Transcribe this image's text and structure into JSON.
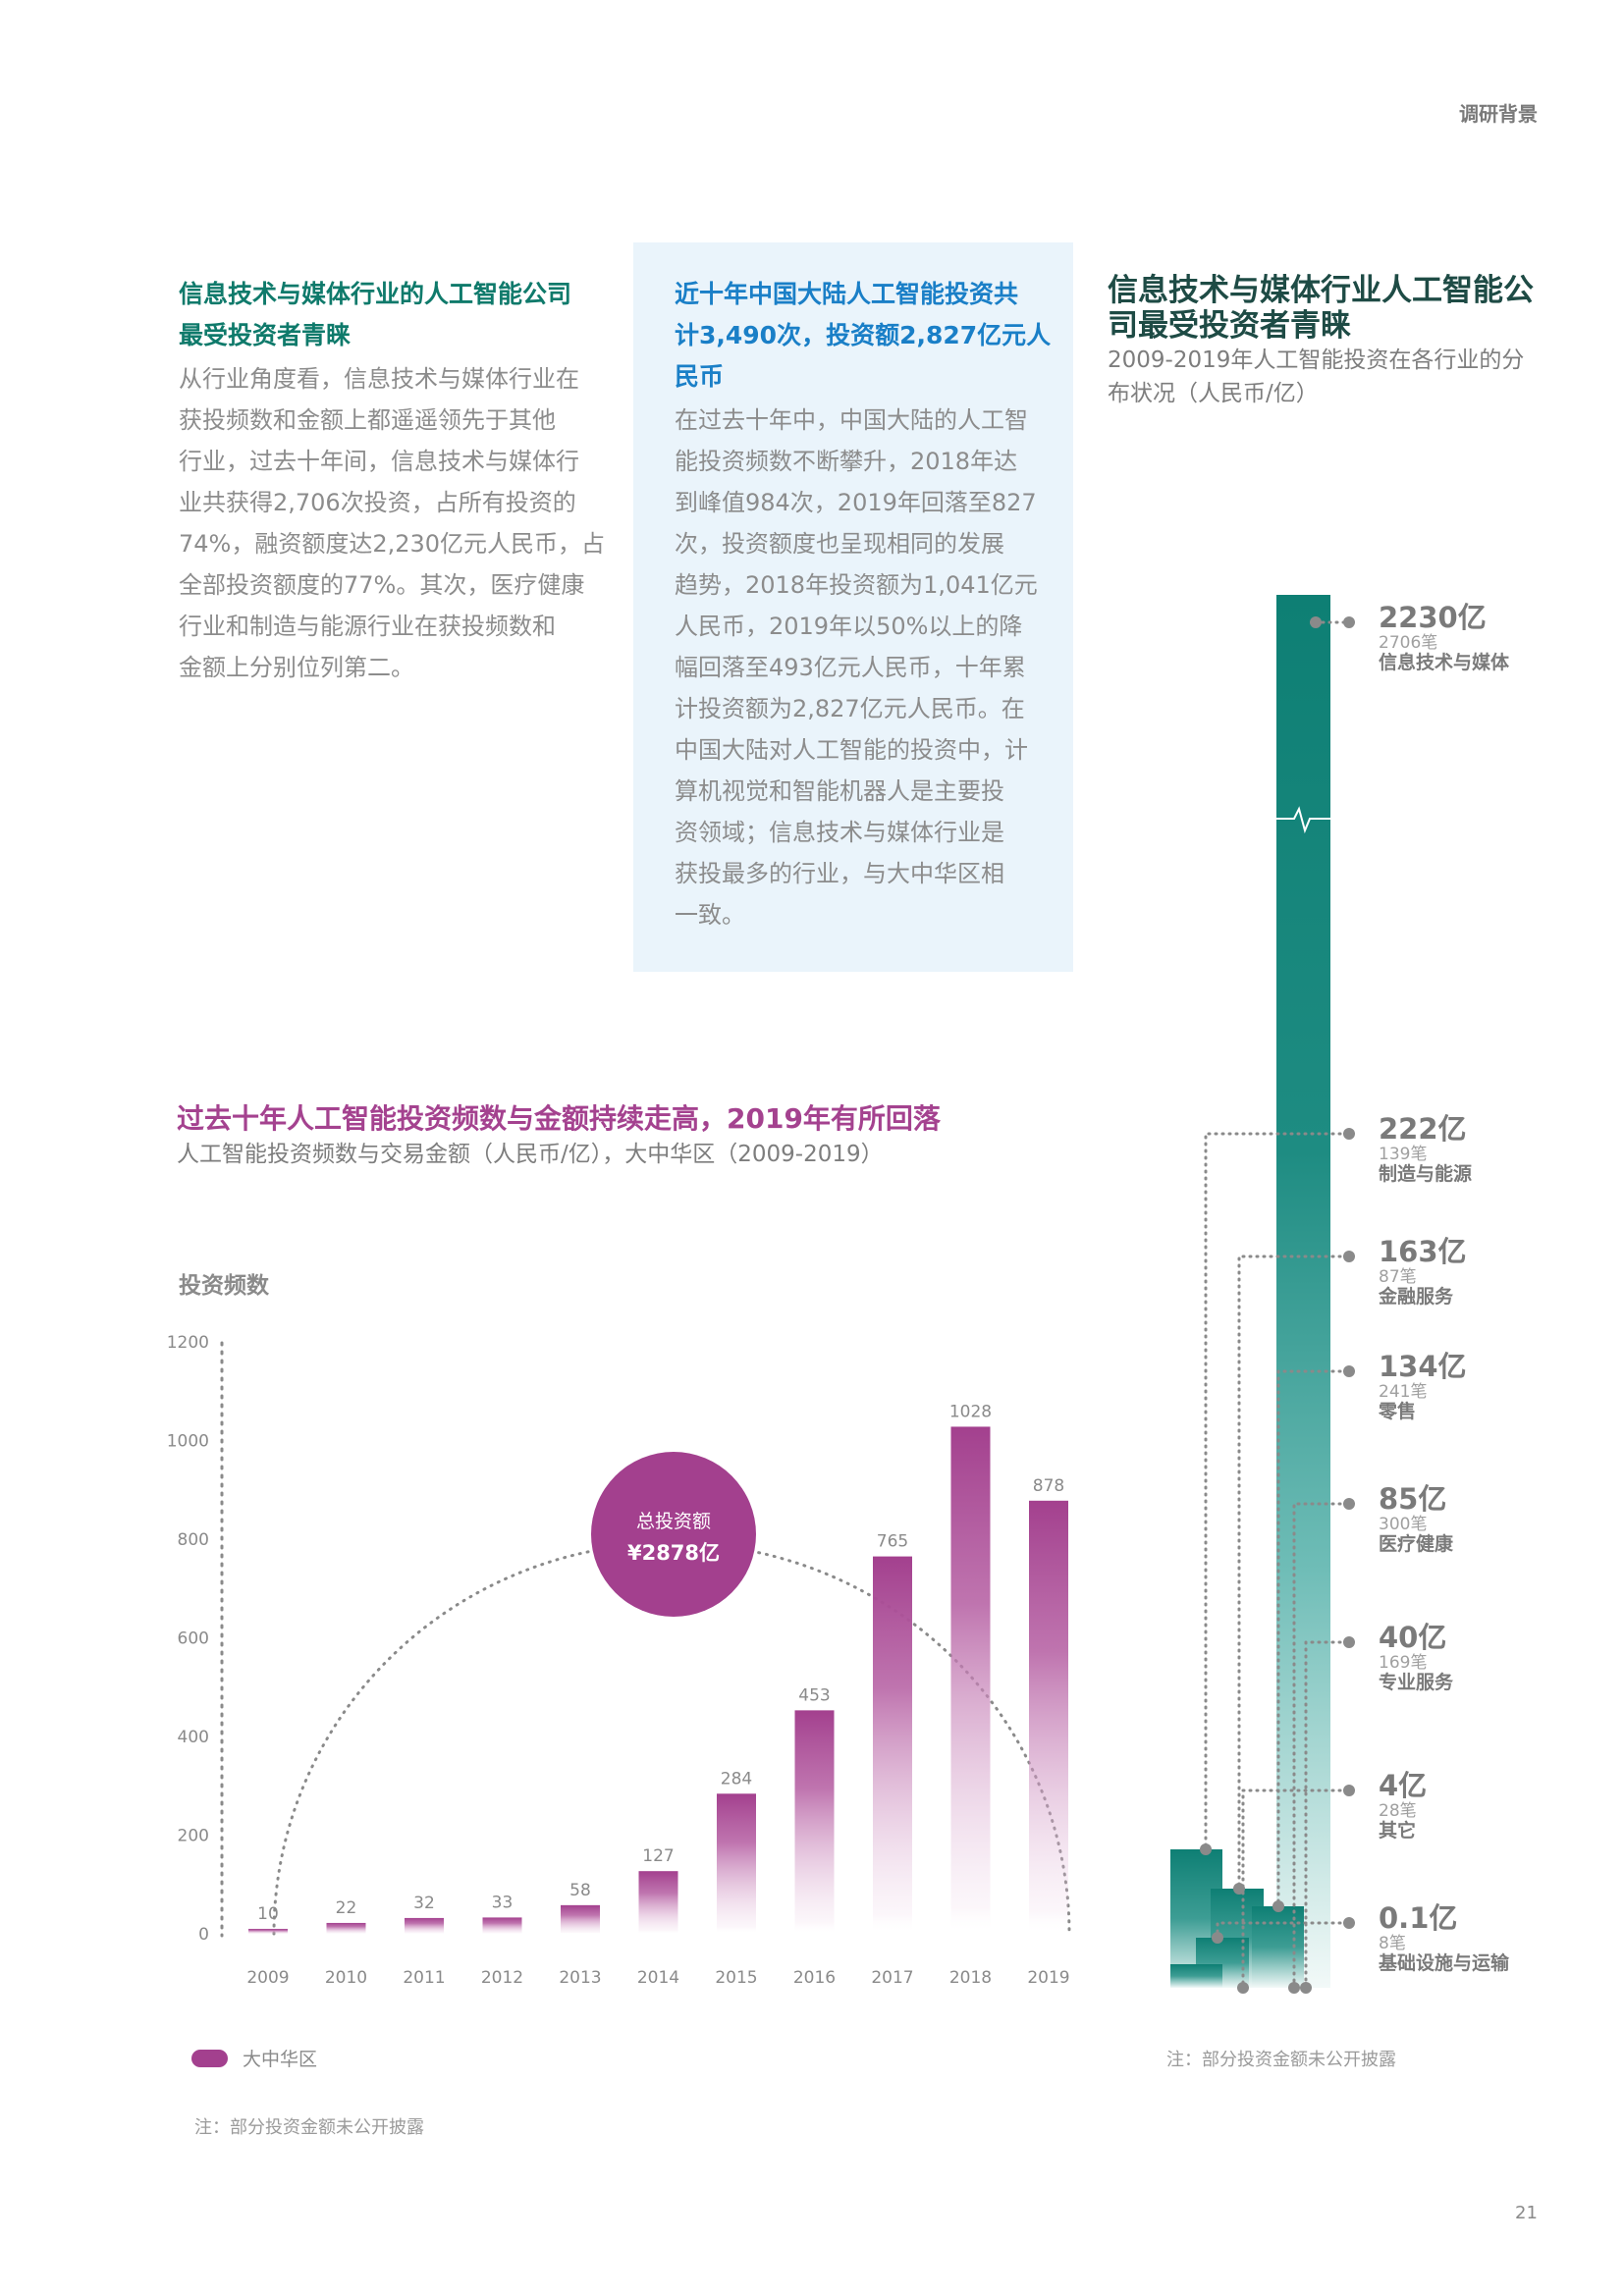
{
  "header": {
    "section": "调研背景",
    "page_number": "21"
  },
  "left_column": {
    "heading_lines": [
      "信息技术与媒体行业的人工智能公司",
      "最受投资者青睐"
    ],
    "body_lines": [
      "从行业角度看，信息技术与媒体行业在",
      "获投频数和金额上都遥遥领先于其他",
      "行业，过去十年间，信息技术与媒体行",
      "业共获得2,706次投资，占所有投资的",
      "74%，融资额度达2,230亿元人民币，占",
      "全部投资额度的77%。其次，医疗健康",
      "行业和制造与能源行业在获投频数和",
      "金额上分别位列第二。"
    ]
  },
  "blue_box": {
    "heading_lines": [
      "近十年中国大陆人工智能投资共",
      "计3,490次，投资额2,827亿元人",
      "民币"
    ],
    "body_lines": [
      "在过去十年中，中国大陆的人工智",
      "能投资频数不断攀升，2018年达",
      "到峰值984次，2019年回落至827",
      "次，投资额度也呈现相同的发展",
      "趋势，2018年投资额为1,041亿元",
      "人民币，2019年以50%以上的降",
      "幅回落至493亿元人民币，十年累",
      "计投资额为2,827亿元人民币。在",
      "中国大陆对人工智能的投资中，计",
      "算机视觉和智能机器人是主要投",
      "资领域；信息技术与媒体行业是",
      "获投最多的行业，与大中华区相",
      "一致。"
    ]
  },
  "colors": {
    "teal": "#0e7f74",
    "purple": "#a3408e",
    "blue_heading": "#1a7fc7",
    "green_heading": "#0f7a6b"
  },
  "chart_data": [
    {
      "type": "bar",
      "title": "过去十年人工智能投资频数与金额持续走高，2019年有所回落",
      "subtitle": "人工智能投资频数与交易金额（人民币/亿），大中华区（2009-2019）",
      "ylabel": "投资频数",
      "xlabel": "",
      "ylim": [
        0,
        1200
      ],
      "yticks": [
        "0",
        "200",
        "400",
        "600",
        "800",
        "1000",
        "1200"
      ],
      "categories": [
        "2009",
        "2010",
        "2011",
        "2012",
        "2013",
        "2014",
        "2015",
        "2016",
        "2017",
        "2018",
        "2019"
      ],
      "series": [
        {
          "name": "大中华区",
          "values": [
            10,
            22,
            32,
            33,
            58,
            127,
            284,
            453,
            765,
            1028,
            878
          ]
        }
      ],
      "data_labels": [
        "10",
        "22",
        "32",
        "33",
        "58",
        "127",
        "284",
        "453",
        "765",
        "1028",
        "878"
      ],
      "annotation": {
        "label": "总投资额",
        "value": "¥2878亿"
      },
      "legend": "bottom-left",
      "note": "注：部分投资金额未公开披露"
    },
    {
      "type": "bar",
      "title": "信息技术与媒体行业人工智能公司最受投资者青睐",
      "subtitle_lines": [
        "2009-2019年人工智能投资在各行业的分",
        "布状况（人民币/亿）"
      ],
      "axis_break": true,
      "items": [
        {
          "name": "信息技术与媒体",
          "amount": 2230,
          "amount_label": "2230亿",
          "count_label": "2706笔"
        },
        {
          "name": "制造与能源",
          "amount": 222,
          "amount_label": "222亿",
          "count_label": "139笔"
        },
        {
          "name": "金融服务",
          "amount": 163,
          "amount_label": "163亿",
          "count_label": "87笔"
        },
        {
          "name": "零售",
          "amount": 134,
          "amount_label": "134亿",
          "count_label": "241笔"
        },
        {
          "name": "医疗健康",
          "amount": 85,
          "amount_label": "85亿",
          "count_label": "300笔"
        },
        {
          "name": "专业服务",
          "amount": 40,
          "amount_label": "40亿",
          "count_label": "169笔"
        },
        {
          "name": "其它",
          "amount": 4,
          "amount_label": "4亿",
          "count_label": "28笔"
        },
        {
          "name": "基础设施与运输",
          "amount": 0.1,
          "amount_label": "0.1亿",
          "count_label": "8笔"
        }
      ],
      "note": "注：部分投资金额未公开披露"
    }
  ]
}
